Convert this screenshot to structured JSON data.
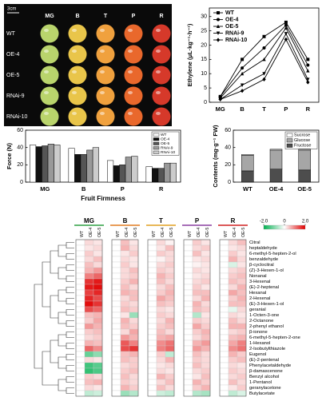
{
  "photo": {
    "scale": "3cm",
    "stages": [
      "MG",
      "B",
      "T",
      "P",
      "R"
    ],
    "lines": [
      "WT",
      "OE-4",
      "OE-5",
      "RNAi-9",
      "RNAi-10"
    ]
  },
  "chart_data": [
    {
      "type": "line",
      "ylabel": "Ethylene (μL·kg⁻¹·h⁻¹)",
      "categories": [
        "MG",
        "B",
        "T",
        "P",
        "R"
      ],
      "ylim": [
        0,
        33
      ],
      "yticks": [
        0,
        5,
        10,
        15,
        20,
        25,
        30
      ],
      "grid": false,
      "legend": "top-left",
      "series": [
        {
          "name": "WT",
          "color": "#000000",
          "marker": "square",
          "values": [
            2,
            15,
            23,
            28,
            15
          ]
        },
        {
          "name": "OE-4",
          "color": "#000000",
          "marker": "circle",
          "values": [
            2,
            12,
            19,
            27,
            13
          ]
        },
        {
          "name": "OE-5",
          "color": "#000000",
          "marker": "triangle",
          "values": [
            1.5,
            10,
            15,
            26,
            11
          ]
        },
        {
          "name": "RNAi-9",
          "color": "#000000",
          "marker": "triangle-down",
          "values": [
            1,
            6,
            10,
            24,
            8
          ]
        },
        {
          "name": "RNAi-10",
          "color": "#000000",
          "marker": "diamond",
          "values": [
            1,
            4,
            8,
            22,
            7
          ]
        }
      ]
    },
    {
      "type": "bar",
      "ylabel": "Force (N)",
      "xlabel": "Fruit Firmness",
      "categories": [
        "MG",
        "B",
        "P",
        "R"
      ],
      "ylim": [
        0,
        60
      ],
      "yticks": [
        0,
        20,
        40,
        60
      ],
      "grid": false,
      "legend": "top-right",
      "stacked": false,
      "series": [
        {
          "name": "WT",
          "color": "#ffffff",
          "values": [
            43,
            39,
            25,
            18
          ]
        },
        {
          "name": "OE-4",
          "color": "#111111",
          "values": [
            41,
            32,
            19,
            16
          ]
        },
        {
          "name": "OE-5",
          "color": "#555555",
          "values": [
            42,
            32,
            20,
            16
          ]
        },
        {
          "name": "RNAi-9",
          "color": "#999999",
          "values": [
            44,
            37,
            29,
            22
          ]
        },
        {
          "name": "RNAi-10",
          "color": "#cccccc",
          "values": [
            43,
            40,
            30,
            22
          ]
        }
      ]
    },
    {
      "type": "bar",
      "ylabel": "Contents (mg·g⁻¹ FW)",
      "categories": [
        "WT",
        "OE-4",
        "OE-5"
      ],
      "ylim": [
        0,
        60
      ],
      "yticks": [
        0,
        20,
        40,
        60
      ],
      "grid": false,
      "legend": "top-right",
      "stacked": true,
      "series": [
        {
          "name": "Fructose",
          "color": "#4d4d4d",
          "values": [
            13,
            15,
            14
          ]
        },
        {
          "name": "Glucose",
          "color": "#a6a6a6",
          "values": [
            18,
            22,
            23
          ]
        },
        {
          "name": "Sucrose",
          "color": "#ffffff",
          "values": [
            1,
            1,
            1
          ]
        }
      ]
    },
    {
      "type": "heatmap",
      "groups": [
        "MG",
        "B",
        "T",
        "P",
        "R"
      ],
      "group_colors": [
        "#2ea043",
        "#e07b20",
        "#e0a020",
        "#8a3fa0",
        "#d02020"
      ],
      "columns": [
        "WT",
        "OE-4",
        "OE-5"
      ],
      "colorbar": {
        "ticks": [
          {
            "value": -2,
            "label": "-2.0"
          },
          0,
          {
            "value": 2,
            "label": "2.0"
          }
        ],
        "colors": [
          "#00b050",
          "#ffffff",
          "#e00000"
        ]
      },
      "rows": [
        "Citral",
        "heptaldehyde",
        "6-methyl-5-hepten-2-ol",
        "benzaldehyde",
        "β-cyclocitral",
        "(Z)-3-Hexen-1-ol",
        "Nonanal",
        "3-Hexenal",
        "(E)-2-heptenal",
        "Hexanal",
        "2-Hexenal",
        "(E)-3-Hexen-1-ol",
        "geranial",
        "1-Octen-3-one",
        "2-Octanone",
        "2-phenyl ethanol",
        "β-ionone",
        "6-methyl-5-hepten-2-one",
        "1-Hexanol",
        "2-Isobutylthiazole",
        "Eugenol",
        "(E)-2-pentenal",
        "Phenylacetaldehyde",
        "β-damascenone",
        "Benzyl alcohol",
        "1-Pentanol",
        "geranylacetone",
        "Butylacetate"
      ],
      "values": [
        [
          0,
          0.3,
          0.2,
          0,
          0.5,
          0.2,
          0,
          0.3,
          0.1,
          0,
          0.4,
          0.2,
          0,
          0.3,
          0.5
        ],
        [
          0,
          0.2,
          0.3,
          0,
          0.6,
          0.3,
          0,
          0.2,
          0.5,
          0,
          0.3,
          0.4,
          0,
          0.2,
          0.3
        ],
        [
          0,
          0.4,
          0.2,
          0,
          0.2,
          0.4,
          0,
          0.4,
          0.3,
          0,
          0.5,
          0.2,
          0,
          0.4,
          0.2
        ],
        [
          0,
          0.3,
          0.5,
          0,
          0.3,
          0.2,
          0,
          0.1,
          0.3,
          0,
          0.2,
          0.3,
          0,
          0.6,
          0.3
        ],
        [
          0,
          0.5,
          0.3,
          0,
          0.4,
          0.2,
          0,
          0.3,
          0.4,
          0,
          0.1,
          0.2,
          0,
          -0.3,
          0.2
        ],
        [
          0,
          0.6,
          0.8,
          0,
          0.3,
          0.5,
          0,
          0.4,
          0.3,
          0,
          0.3,
          0.2,
          0,
          0.3,
          0.4
        ],
        [
          0,
          1.0,
          1.2,
          0,
          0.3,
          0.4,
          0,
          0.6,
          0.4,
          0,
          0.2,
          0.3,
          0,
          0.4,
          0.5
        ],
        [
          0,
          1.6,
          1.8,
          0,
          0.4,
          0.6,
          0,
          0.5,
          0.3,
          0,
          0.3,
          0.4,
          0,
          0.5,
          0.4
        ],
        [
          0,
          1.8,
          1.9,
          0,
          0.5,
          0.3,
          0,
          0.3,
          0.5,
          0,
          0.4,
          0.2,
          0,
          0.3,
          0.6
        ],
        [
          0,
          1.5,
          1.7,
          0,
          0.6,
          0.5,
          0,
          0.4,
          0.6,
          0,
          0.5,
          0.5,
          0,
          0.7,
          0.5
        ],
        [
          0,
          1.7,
          1.4,
          0,
          0.3,
          0.5,
          0,
          0.7,
          0.5,
          0,
          0.3,
          0.6,
          0,
          0.4,
          0.6
        ],
        [
          0,
          1.9,
          1.6,
          0,
          0.4,
          0.3,
          0,
          0.5,
          0.4,
          0,
          0.6,
          0.3,
          0,
          0.5,
          0.5
        ],
        [
          0,
          1.4,
          1.2,
          0,
          0.5,
          0.4,
          0,
          0.3,
          0.2,
          0,
          0.5,
          0.4,
          0,
          -0.2,
          0.3
        ],
        [
          0,
          0.5,
          0.6,
          0,
          0.2,
          -0.8,
          0,
          0.4,
          0.3,
          0,
          -0.6,
          0.2,
          0,
          0.3,
          0.2
        ],
        [
          0,
          0.4,
          0.7,
          0,
          0.6,
          0.3,
          0,
          0.3,
          0.6,
          0,
          0.4,
          0.3,
          0,
          0.5,
          0.3
        ],
        [
          0,
          0.8,
          0.6,
          0,
          0.5,
          0.4,
          0,
          0.4,
          0.5,
          0,
          0.7,
          0.4,
          0,
          0.6,
          0.6
        ],
        [
          0,
          0.4,
          0.5,
          0,
          0.3,
          0.7,
          0,
          0.5,
          0.3,
          0,
          0.4,
          0.6,
          0,
          0.3,
          0.4
        ],
        [
          0,
          0.3,
          0.4,
          0,
          0.8,
          0.6,
          0,
          0.6,
          0.7,
          0,
          0.3,
          0.5,
          0,
          0.5,
          0.6
        ],
        [
          0,
          0.6,
          0.5,
          0,
          1.3,
          1.0,
          0,
          0.9,
          1.1,
          0,
          0.6,
          0.8,
          0,
          0.7,
          1.0
        ],
        [
          0,
          1.2,
          0.9,
          0,
          1.4,
          1.6,
          0,
          1.0,
          1.2,
          0,
          0.8,
          0.6,
          0,
          0.9,
          1.1
        ],
        [
          0,
          -1.2,
          -0.9,
          0,
          0.5,
          0.6,
          0,
          0.4,
          -0.5,
          0,
          0.5,
          0.3,
          0,
          0.6,
          0.4
        ],
        [
          0,
          0.3,
          0.2,
          0,
          0.5,
          0.4,
          0,
          0.3,
          0.6,
          0,
          0.4,
          0.3,
          0,
          0.4,
          0.5
        ],
        [
          0,
          -1.5,
          -1.3,
          0,
          0.3,
          0.4,
          0,
          0.2,
          0.3,
          0,
          0.5,
          0.3,
          0,
          0.3,
          0.2
        ],
        [
          0,
          -1.6,
          -1.4,
          0,
          0.4,
          0.5,
          0,
          0.3,
          0.2,
          0,
          0.3,
          0.4,
          0,
          0.4,
          0.3
        ],
        [
          0,
          0.4,
          0.3,
          0,
          0.5,
          0.3,
          0,
          0.6,
          0.4,
          0,
          0.2,
          0.5,
          0,
          0.3,
          0.4
        ],
        [
          0,
          0.5,
          0.6,
          0,
          0.4,
          0.3,
          0,
          0.3,
          0.5,
          0,
          0.6,
          0.4,
          0,
          0.5,
          0.3
        ],
        [
          0,
          0.3,
          0.2,
          0,
          0.6,
          0.4,
          0,
          0.5,
          0.3,
          0,
          0.4,
          0.6,
          0,
          0.2,
          0.4
        ],
        [
          0,
          -0.5,
          -0.4,
          0,
          -0.8,
          -0.6,
          0,
          -0.4,
          -0.5,
          0,
          -0.6,
          -0.7,
          0,
          -0.5,
          -0.3
        ]
      ]
    }
  ]
}
